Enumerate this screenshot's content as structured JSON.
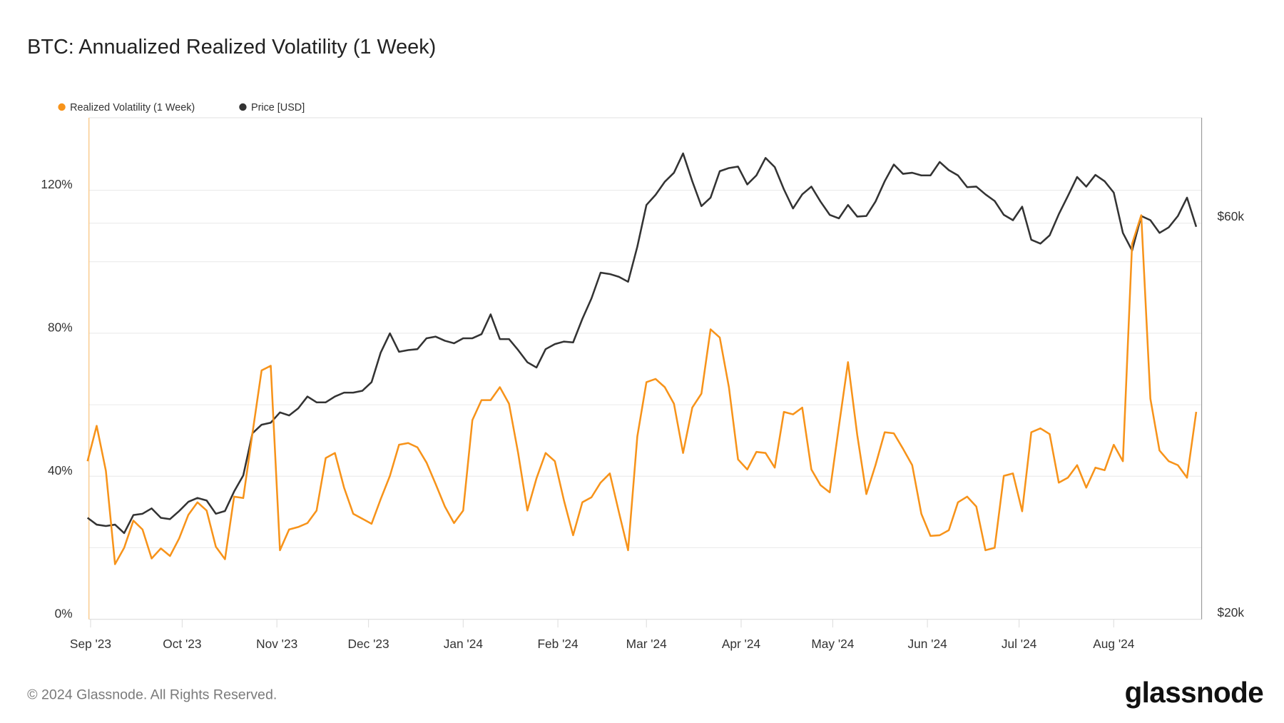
{
  "header": {
    "title": "BTC: Annualized Realized Volatility (1 Week)"
  },
  "footer": {
    "copyright": "© 2024 Glassnode. All Rights Reserved.",
    "logo": "glassnode"
  },
  "colors": {
    "volatility": "#f7931a",
    "price": "#333333",
    "grid": "#ececec"
  },
  "chart_data": {
    "type": "line",
    "title": "BTC: Annualized Realized Volatility (1 Week)",
    "legend": {
      "placement": "top-left",
      "items": [
        "Realized Volatility (1 Week)",
        "Price [USD]"
      ]
    },
    "grid": true,
    "x_ticks": [
      "Sep '23",
      "Oct '23",
      "Nov '23",
      "Dec '23",
      "Jan '24",
      "Feb '24",
      "Mar '24",
      "Apr '24",
      "May '24",
      "Jun '24",
      "Jul '24",
      "Aug '24"
    ],
    "x_tick_dates": [
      "2023-09-01",
      "2023-10-01",
      "2023-11-01",
      "2023-12-01",
      "2024-01-01",
      "2024-02-01",
      "2024-03-01",
      "2024-04-01",
      "2024-05-01",
      "2024-06-01",
      "2024-07-01",
      "2024-08-01"
    ],
    "xlim": [
      "2023-08-31",
      "2024-08-30"
    ],
    "y_left": {
      "ticks": [
        "0%",
        "40%",
        "80%",
        "120%"
      ],
      "tick_values": [
        0,
        40,
        80,
        120
      ],
      "range": [
        0,
        140
      ],
      "unit": "%"
    },
    "y_right": {
      "ticks": [
        "$20k",
        "$60k"
      ],
      "tick_values": [
        20000,
        60000
      ],
      "scale": "log",
      "range": [
        20000,
        76000
      ]
    },
    "x": [
      "2023-08-31",
      "2023-09-03",
      "2023-09-06",
      "2023-09-09",
      "2023-09-12",
      "2023-09-15",
      "2023-09-18",
      "2023-09-21",
      "2023-09-24",
      "2023-09-27",
      "2023-09-30",
      "2023-10-03",
      "2023-10-06",
      "2023-10-09",
      "2023-10-12",
      "2023-10-15",
      "2023-10-18",
      "2023-10-21",
      "2023-10-24",
      "2023-10-27",
      "2023-10-30",
      "2023-11-02",
      "2023-11-05",
      "2023-11-08",
      "2023-11-11",
      "2023-11-14",
      "2023-11-17",
      "2023-11-20",
      "2023-11-23",
      "2023-11-26",
      "2023-11-29",
      "2023-12-02",
      "2023-12-05",
      "2023-12-08",
      "2023-12-11",
      "2023-12-14",
      "2023-12-17",
      "2023-12-20",
      "2023-12-23",
      "2023-12-26",
      "2023-12-29",
      "2024-01-01",
      "2024-01-04",
      "2024-01-07",
      "2024-01-10",
      "2024-01-13",
      "2024-01-16",
      "2024-01-19",
      "2024-01-22",
      "2024-01-25",
      "2024-01-28",
      "2024-01-31",
      "2024-02-03",
      "2024-02-06",
      "2024-02-09",
      "2024-02-12",
      "2024-02-15",
      "2024-02-18",
      "2024-02-21",
      "2024-02-24",
      "2024-02-27",
      "2024-03-01",
      "2024-03-04",
      "2024-03-07",
      "2024-03-10",
      "2024-03-13",
      "2024-03-16",
      "2024-03-19",
      "2024-03-22",
      "2024-03-25",
      "2024-03-28",
      "2024-03-31",
      "2024-04-03",
      "2024-04-06",
      "2024-04-09",
      "2024-04-12",
      "2024-04-15",
      "2024-04-18",
      "2024-04-21",
      "2024-04-24",
      "2024-04-27",
      "2024-04-30",
      "2024-05-03",
      "2024-05-06",
      "2024-05-09",
      "2024-05-12",
      "2024-05-15",
      "2024-05-18",
      "2024-05-21",
      "2024-05-24",
      "2024-05-27",
      "2024-05-30",
      "2024-06-02",
      "2024-06-05",
      "2024-06-08",
      "2024-06-11",
      "2024-06-14",
      "2024-06-17",
      "2024-06-20",
      "2024-06-23",
      "2024-06-26",
      "2024-06-29",
      "2024-07-02",
      "2024-07-05",
      "2024-07-08",
      "2024-07-11",
      "2024-07-14",
      "2024-07-17",
      "2024-07-20",
      "2024-07-23",
      "2024-07-26",
      "2024-07-29",
      "2024-08-01",
      "2024-08-04",
      "2024-08-07",
      "2024-08-10",
      "2024-08-13",
      "2024-08-16",
      "2024-08-19",
      "2024-08-22",
      "2024-08-25",
      "2024-08-28"
    ],
    "series": [
      {
        "name": "Realized Volatility (1 Week)",
        "axis": "left",
        "unit": "%",
        "values": [
          44.2,
          54.1,
          41.5,
          15.4,
          20.0,
          27.6,
          25.1,
          17.0,
          19.8,
          17.7,
          22.6,
          29.2,
          32.7,
          30.4,
          20.3,
          16.8,
          34.3,
          33.9,
          52.0,
          69.6,
          70.9,
          19.3,
          25.1,
          25.8,
          26.9,
          30.4,
          45.1,
          46.5,
          36.8,
          29.5,
          28.1,
          26.7,
          33.6,
          40.1,
          48.8,
          49.3,
          48.1,
          43.8,
          37.8,
          31.5,
          26.9,
          30.4,
          55.7,
          61.3,
          61.3,
          64.9,
          60.3,
          46.5,
          30.4,
          39.4,
          46.5,
          44.2,
          33.2,
          23.5,
          32.7,
          34.1,
          38.2,
          40.8,
          29.9,
          19.3,
          51.1,
          66.3,
          67.2,
          64.9,
          60.3,
          46.5,
          59.2,
          63.1,
          81.1,
          78.8,
          64.9,
          44.7,
          41.9,
          46.8,
          46.5,
          42.4,
          58.0,
          57.3,
          59.2,
          41.9,
          37.5,
          35.5,
          53.9,
          71.9,
          51.6,
          35.0,
          43.1,
          52.3,
          52.0,
          47.7,
          43.1,
          29.5,
          23.3,
          23.5,
          24.9,
          32.7,
          34.3,
          31.5,
          19.3,
          20.0,
          40.1,
          40.8,
          30.2,
          52.3,
          53.4,
          51.8,
          38.2,
          39.6,
          43.1,
          36.8,
          42.4,
          41.7,
          48.8,
          44.2,
          105.0,
          113.0,
          61.7,
          47.2,
          44.2,
          43.1,
          39.6,
          58.0
        ]
      },
      {
        "name": "Price [USD]",
        "axis": "right",
        "unit": "USD",
        "values": [
          26500,
          26000,
          25900,
          26000,
          25400,
          26700,
          26800,
          27200,
          26500,
          26400,
          27000,
          27700,
          28000,
          27800,
          26800,
          27000,
          28500,
          29800,
          33500,
          34300,
          34500,
          35500,
          35200,
          35900,
          37100,
          36500,
          36500,
          37100,
          37500,
          37500,
          37700,
          38600,
          41900,
          44200,
          42000,
          42200,
          42300,
          43600,
          43800,
          43300,
          43000,
          43600,
          43600,
          44100,
          46600,
          43500,
          43500,
          42200,
          40800,
          40200,
          42300,
          42900,
          43200,
          43100,
          46000,
          48700,
          52300,
          52100,
          51700,
          51000,
          56200,
          63100,
          64900,
          67300,
          69000,
          72800,
          67400,
          62900,
          64400,
          69300,
          69900,
          70200,
          66800,
          68500,
          71900,
          70100,
          65900,
          62500,
          65000,
          66400,
          63700,
          61400,
          60800,
          63100,
          61100,
          61200,
          63700,
          67400,
          70600,
          68800,
          69000,
          68500,
          68500,
          71100,
          69500,
          68500,
          66300,
          66400,
          65000,
          63800,
          61400,
          60500,
          62800,
          57300,
          56700,
          58000,
          61500,
          64700,
          68200,
          66400,
          68600,
          67400,
          65300,
          58400,
          55600,
          61200,
          60500,
          58400,
          59300,
          61200,
          64400,
          59400
        ]
      }
    ]
  }
}
